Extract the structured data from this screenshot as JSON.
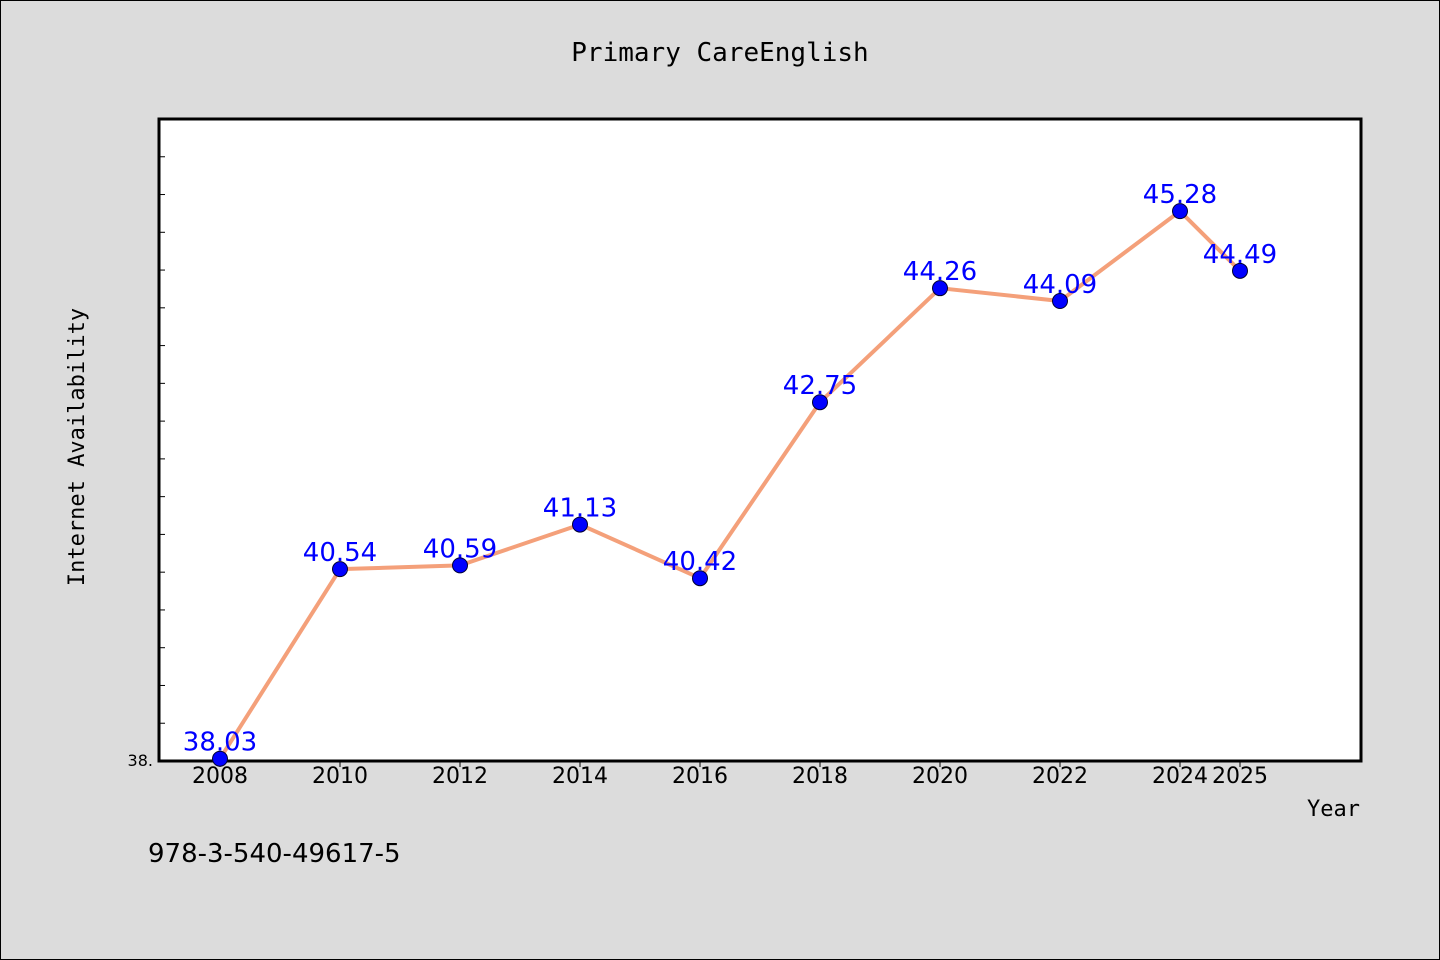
{
  "chart_data": {
    "type": "line",
    "title": "Primary CareEnglish",
    "xlabel": "Year",
    "ylabel": "Internet Availability",
    "x": [
      2008,
      2010,
      2012,
      2014,
      2016,
      2018,
      2020,
      2022,
      2024,
      2025
    ],
    "x_tick_labels": [
      "2008",
      "2010",
      "2012",
      "2014",
      "2016",
      "2018",
      "2020",
      "2022",
      "2024",
      "2025"
    ],
    "series": [
      {
        "values": [
          38.03,
          40.54,
          40.59,
          41.13,
          40.42,
          42.75,
          44.26,
          44.09,
          45.28,
          44.49
        ],
        "labels": [
          "38.03",
          "40.54",
          "40.59",
          "41.13",
          "40.42",
          "42.75",
          "44.26",
          "44.09",
          "45.28",
          "44.49"
        ]
      }
    ],
    "ylim": [
      38.0,
      46.5
    ],
    "y_tick_label": "38.",
    "grid": false,
    "colors": {
      "line": "#f4a07a",
      "marker": "#0000ff",
      "label": "#0000ff",
      "frame": "#000000",
      "plot_bg": "#ffffff",
      "figure_bg": "#dcdcdc"
    }
  },
  "footer": {
    "isbn": "978-3-540-49617-5"
  }
}
